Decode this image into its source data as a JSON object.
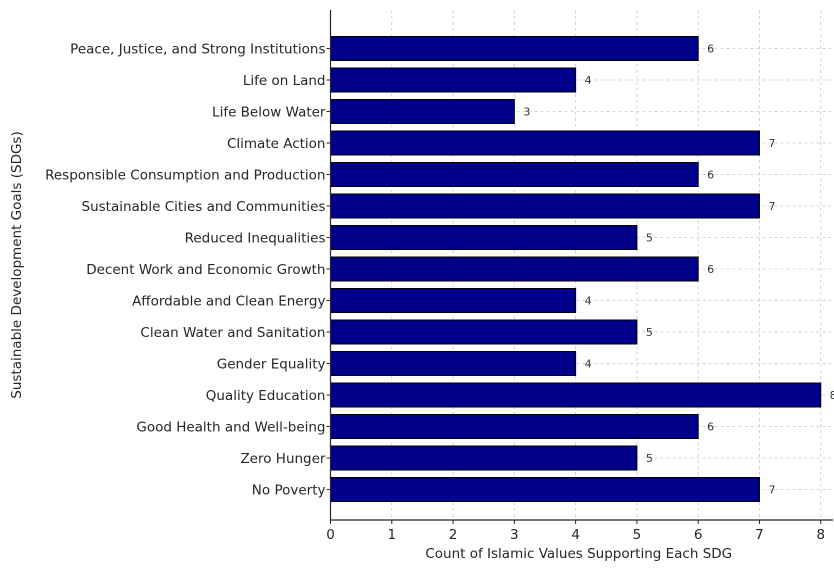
{
  "chart_data": {
    "type": "bar",
    "orientation": "horizontal",
    "title": "",
    "xlabel": "Count of Islamic Values Supporting Each SDG",
    "ylabel": "Sustainable Development Goals (SDGs)",
    "categories": [
      "No Poverty",
      "Zero Hunger",
      "Good Health and Well-being",
      "Quality Education",
      "Gender Equality",
      "Clean Water and Sanitation",
      "Affordable and Clean Energy",
      "Decent Work and Economic Growth",
      "Reduced Inequalities",
      "Sustainable Cities and Communities",
      "Responsible Consumption and Production",
      "Climate Action",
      "Life Below Water",
      "Life on Land",
      "Peace, Justice, and Strong Institutions"
    ],
    "values": [
      7,
      5,
      6,
      8,
      4,
      5,
      4,
      6,
      5,
      7,
      6,
      7,
      3,
      4,
      6
    ],
    "xlim": [
      0,
      8.2
    ],
    "xticks": [
      "0",
      "1",
      "2",
      "3",
      "4",
      "5",
      "6",
      "7",
      "8"
    ],
    "grid": true,
    "bar_color": "#00008b",
    "bar_edge_color": "#000000",
    "data_labels": true
  }
}
